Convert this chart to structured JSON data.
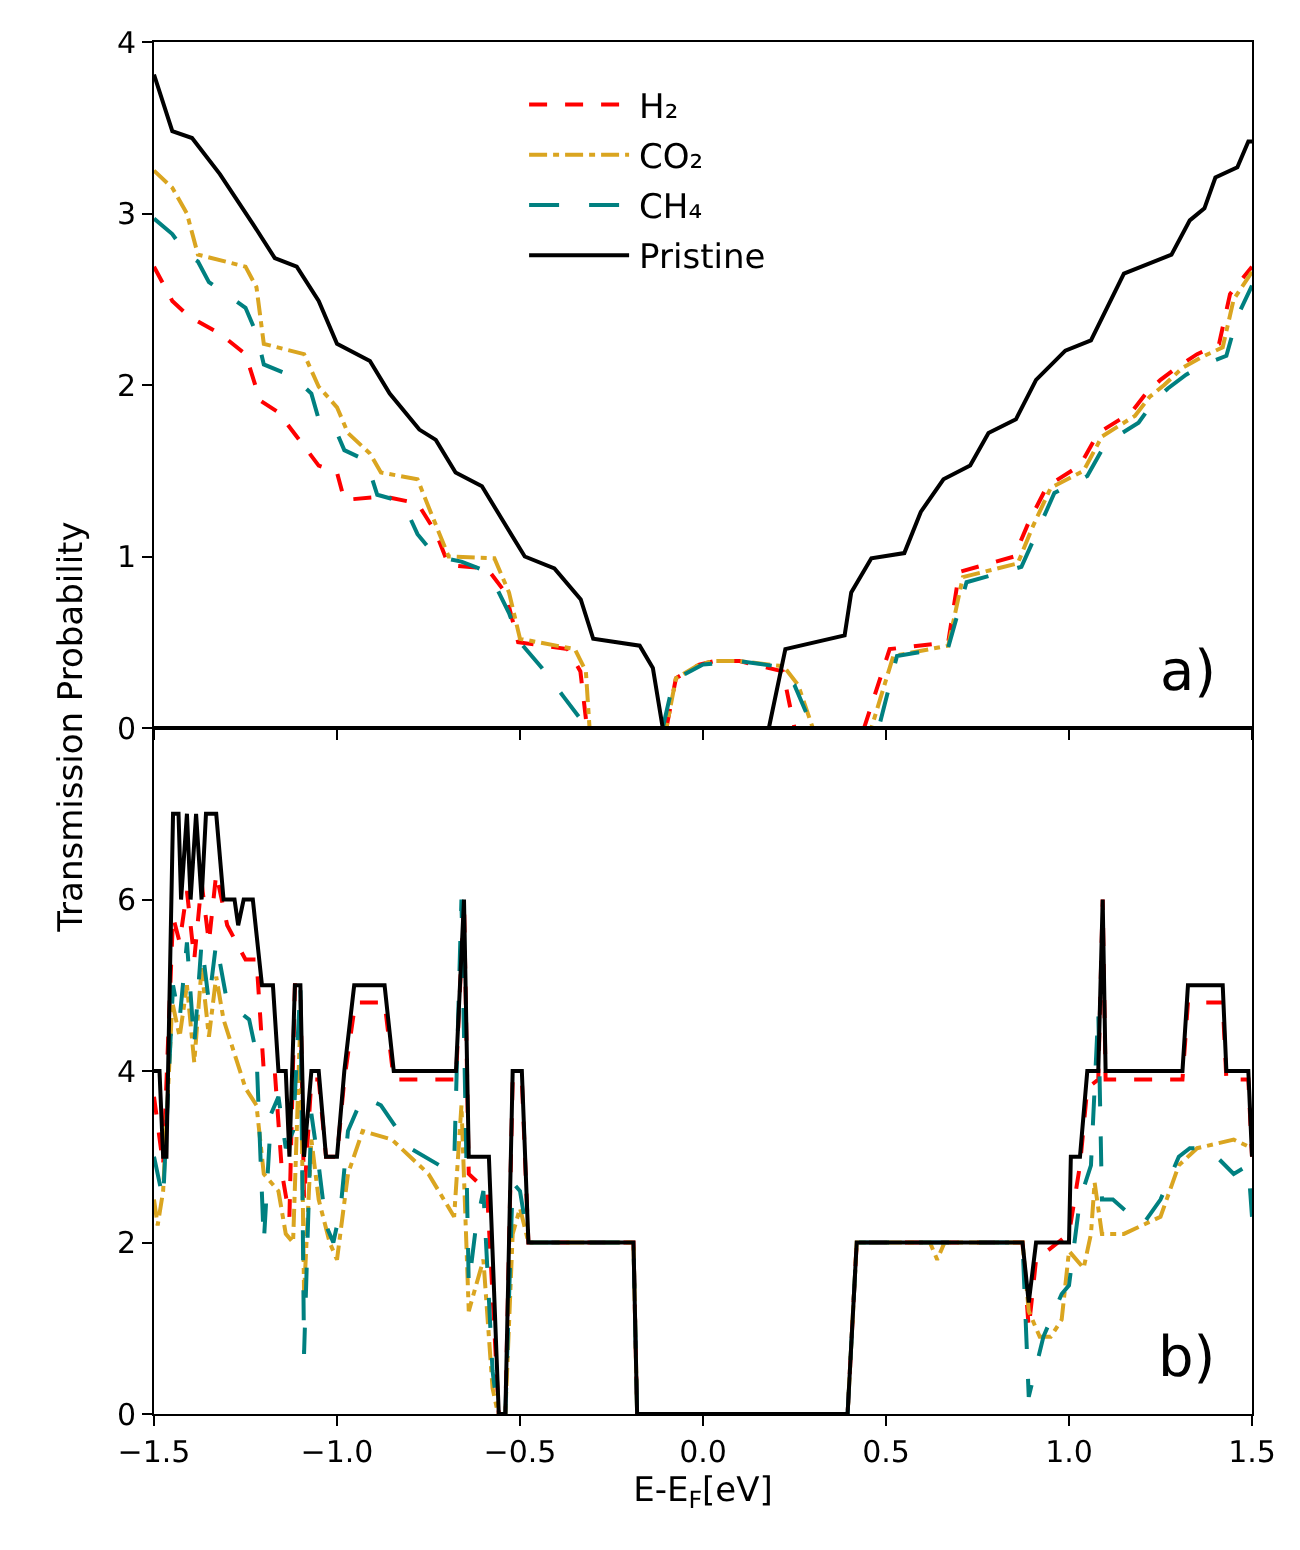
{
  "chart_data": [
    {
      "type": "line",
      "ylabel": "Transmission Probability",
      "annotations": [
        "a)"
      ],
      "xlim": [
        -1.5,
        1.5
      ],
      "xticks": [
        -1.5,
        -1.0,
        -0.5,
        0.0,
        0.5,
        1.0,
        1.5
      ],
      "ylim": [
        0,
        4
      ],
      "yticks": [
        0,
        1,
        2,
        3,
        4
      ],
      "tick_labels": "y",
      "grid": false,
      "legend": "top",
      "marker": "none",
      "series": [
        {
          "name": "H₂",
          "color": "#ff0000",
          "line_style": "dashed",
          "x": [
            -1.5,
            -1.45,
            -1.405,
            -1.32,
            -1.25,
            -1.21,
            -1.16,
            -1.05,
            -1.0,
            -0.98,
            -0.87,
            -0.78,
            -0.73,
            -0.695,
            -0.59,
            -0.54,
            -0.505,
            -0.37,
            -0.335,
            -0.317,
            -0.1,
            -0.074,
            -0.01,
            0.03,
            0.1,
            0.218,
            0.25,
            0.44,
            0.51,
            0.67,
            0.7,
            0.85,
            0.89,
            0.94,
            1.03,
            1.08,
            1.17,
            1.21,
            1.25,
            1.3,
            1.35,
            1.41,
            1.44,
            1.5
          ],
          "values": [
            2.69,
            2.49,
            2.4,
            2.3,
            2.18,
            1.91,
            1.84,
            1.53,
            1.49,
            1.33,
            1.35,
            1.31,
            1.14,
            0.95,
            0.93,
            0.79,
            0.5,
            0.46,
            0.33,
            0,
            0,
            0.29,
            0.37,
            0.39,
            0.39,
            0.33,
            0,
            0,
            0.46,
            0.5,
            0.91,
            1.0,
            1.2,
            1.41,
            1.53,
            1.72,
            1.84,
            1.95,
            2.03,
            2.11,
            2.18,
            2.24,
            2.53,
            2.69
          ]
        },
        {
          "name": "CO₂",
          "color": "#daa520",
          "line_style": "dashdot",
          "x": [
            -1.5,
            -1.45,
            -1.41,
            -1.38,
            -1.25,
            -1.22,
            -1.2,
            -1.09,
            -1.05,
            -1.0,
            -0.97,
            -0.91,
            -0.88,
            -0.78,
            -0.75,
            -0.695,
            -0.57,
            -0.53,
            -0.5,
            -0.35,
            -0.32,
            -0.31,
            -0.1,
            -0.074,
            -0.01,
            0.03,
            0.1,
            0.22,
            0.26,
            0.3,
            0.46,
            0.52,
            0.67,
            0.71,
            0.86,
            0.9,
            0.95,
            1.04,
            1.09,
            1.18,
            1.22,
            1.26,
            1.31,
            1.36,
            1.42,
            1.45,
            1.5
          ],
          "values": [
            3.25,
            3.15,
            3.0,
            2.76,
            2.69,
            2.57,
            2.24,
            2.18,
            1.99,
            1.87,
            1.72,
            1.6,
            1.49,
            1.45,
            1.29,
            1.0,
            0.99,
            0.79,
            0.52,
            0.46,
            0.33,
            0,
            0,
            0.29,
            0.37,
            0.39,
            0.39,
            0.36,
            0.25,
            0,
            0,
            0.42,
            0.48,
            0.88,
            0.96,
            1.17,
            1.4,
            1.5,
            1.7,
            1.82,
            1.93,
            2.0,
            2.1,
            2.16,
            2.22,
            2.5,
            2.66
          ]
        },
        {
          "name": "CH₄",
          "color": "#008080",
          "line_style": "longdash",
          "x": [
            -1.5,
            -1.45,
            -1.41,
            -1.38,
            -1.35,
            -1.25,
            -1.22,
            -1.2,
            -1.12,
            -1.07,
            -1.05,
            -1.0,
            -0.98,
            -0.92,
            -0.89,
            -0.84,
            -0.81,
            -0.78,
            -0.73,
            -0.66,
            -0.6,
            -0.56,
            -0.53,
            -0.5,
            -0.44,
            -0.38,
            -0.33,
            -0.3,
            -0.11,
            -0.08,
            0.0,
            0.1,
            0.2,
            0.25,
            0.3,
            0.48,
            0.53,
            0.67,
            0.72,
            0.87,
            0.91,
            0.96,
            1.05,
            1.1,
            1.19,
            1.23,
            1.27,
            1.32,
            1.37,
            1.43,
            1.46,
            1.5
          ],
          "values": [
            2.97,
            2.88,
            2.76,
            2.72,
            2.6,
            2.45,
            2.3,
            2.12,
            2.05,
            1.95,
            1.8,
            1.72,
            1.62,
            1.56,
            1.36,
            1.33,
            1.27,
            1.13,
            1.0,
            0.97,
            0.92,
            0.8,
            0.67,
            0.5,
            0.35,
            0.18,
            0.04,
            0,
            0,
            0.28,
            0.37,
            0.39,
            0.36,
            0.25,
            0,
            0,
            0.42,
            0.47,
            0.85,
            0.94,
            1.13,
            1.37,
            1.47,
            1.66,
            1.78,
            1.9,
            1.98,
            2.06,
            2.12,
            2.17,
            2.4,
            2.58
          ]
        },
        {
          "name": "Pristine",
          "color": "#000000",
          "line_style": "solid",
          "x": [
            -1.5,
            -1.45,
            -1.396,
            -1.32,
            -1.23,
            -1.17,
            -1.11,
            -1.05,
            -1.0,
            -0.91,
            -0.856,
            -0.775,
            -0.73,
            -0.676,
            -0.604,
            -0.55,
            -0.487,
            -0.406,
            -0.334,
            -0.3,
            -0.173,
            -0.137,
            -0.11,
            0.18,
            0.225,
            0.387,
            0.405,
            0.46,
            0.55,
            0.595,
            0.657,
            0.73,
            0.78,
            0.855,
            0.91,
            0.99,
            1.06,
            1.15,
            1.28,
            1.33,
            1.37,
            1.4,
            1.46,
            1.49,
            1.5
          ],
          "values": [
            3.81,
            3.48,
            3.44,
            3.23,
            2.94,
            2.74,
            2.69,
            2.49,
            2.24,
            2.14,
            1.95,
            1.74,
            1.68,
            1.49,
            1.41,
            1.22,
            1.0,
            0.93,
            0.75,
            0.52,
            0.48,
            0.35,
            0,
            0,
            0.46,
            0.54,
            0.79,
            0.99,
            1.02,
            1.26,
            1.45,
            1.53,
            1.72,
            1.8,
            2.03,
            2.2,
            2.26,
            2.65,
            2.76,
            2.96,
            3.03,
            3.21,
            3.27,
            3.42,
            3.42
          ]
        }
      ]
    },
    {
      "type": "line",
      "xlabel": "E-E$_{F}$[eV]",
      "annotations": [
        "b)"
      ],
      "xlim": [
        -1.5,
        1.5
      ],
      "xticks": [
        {
          "value": -1.5,
          "label": "−1.5"
        },
        {
          "value": -1.0,
          "label": "−1.0"
        },
        {
          "value": -0.5,
          "label": "−0.5"
        },
        {
          "value": 0.0,
          "label": "0.0"
        },
        {
          "value": 0.5,
          "label": "0.5"
        },
        {
          "value": 1.0,
          "label": "1.0"
        },
        {
          "value": 1.5,
          "label": "1.5"
        }
      ],
      "ylim": [
        0,
        8
      ],
      "yticks": [
        0,
        2,
        4,
        6
      ],
      "grid": false,
      "marker": "none",
      "series": [
        {
          "color": "#ff0000",
          "line_style": "dashed",
          "x": [
            -1.5,
            -1.475,
            -1.448,
            -1.43,
            -1.41,
            -1.39,
            -1.37,
            -1.35,
            -1.33,
            -1.3,
            -1.25,
            -1.22,
            -1.2,
            -1.17,
            -1.15,
            -1.13,
            -1.115,
            -1.1,
            -1.09,
            -1.07,
            -1.05,
            -1.03,
            -1.0,
            -0.98,
            -0.95,
            -0.87,
            -0.845,
            -0.675,
            -0.653,
            -0.64,
            -0.59,
            -0.558,
            -0.54,
            -0.52,
            -0.495,
            -0.477,
            -0.19,
            -0.18,
            0.395,
            0.42,
            0.873,
            0.89,
            0.91,
            1.0,
            1.03,
            1.05,
            1.08,
            1.092,
            1.1,
            1.31,
            1.325,
            1.42,
            1.43,
            1.49,
            1.5
          ],
          "values": [
            3.7,
            2.9,
            5.8,
            5.5,
            6.1,
            5.3,
            6.2,
            5.5,
            6.3,
            5.7,
            5.3,
            5.3,
            4.0,
            4.0,
            2.8,
            2.3,
            5.0,
            5.0,
            2.5,
            3.9,
            3.9,
            3.0,
            3.0,
            3.9,
            4.8,
            4.8,
            3.9,
            3.9,
            6.0,
            2.8,
            2.6,
            0,
            0,
            3.9,
            3.9,
            2.0,
            2.0,
            0,
            0,
            2.0,
            2.0,
            1.0,
            1.8,
            2.1,
            2.9,
            3.8,
            3.9,
            6.0,
            3.9,
            3.9,
            4.8,
            4.8,
            3.9,
            3.9,
            3.0
          ]
        },
        {
          "color": "#daa520",
          "line_style": "dashdot",
          "x": [
            -1.5,
            -1.49,
            -1.475,
            -1.45,
            -1.43,
            -1.41,
            -1.39,
            -1.37,
            -1.35,
            -1.33,
            -1.31,
            -1.28,
            -1.25,
            -1.22,
            -1.2,
            -1.16,
            -1.14,
            -1.12,
            -1.1,
            -1.09,
            -1.07,
            -1.05,
            -1.02,
            -1.0,
            -0.97,
            -0.93,
            -0.85,
            -0.75,
            -0.68,
            -0.66,
            -0.64,
            -0.6,
            -0.575,
            -0.56,
            -0.54,
            -0.52,
            -0.5,
            -0.477,
            -0.19,
            -0.18,
            0.395,
            0.42,
            0.62,
            0.64,
            0.66,
            0.873,
            0.89,
            0.92,
            0.95,
            0.98,
            1.0,
            1.04,
            1.06,
            1.07,
            1.09,
            1.15,
            1.25,
            1.3,
            1.35,
            1.45,
            1.5
          ],
          "values": [
            2.5,
            2.2,
            2.6,
            4.8,
            4.4,
            5.0,
            4.1,
            5.2,
            4.4,
            5.1,
            4.6,
            4.2,
            3.8,
            3.6,
            2.8,
            2.6,
            2.1,
            2.0,
            4.6,
            1.4,
            3.2,
            2.5,
            2.0,
            1.8,
            2.8,
            3.3,
            3.2,
            2.8,
            2.3,
            3.6,
            1.2,
            1.8,
            0.3,
            0,
            0,
            2.1,
            2.4,
            2.0,
            2.0,
            0,
            0,
            2.0,
            2.0,
            1.8,
            2.0,
            2.0,
            1.2,
            0.9,
            0.9,
            1.1,
            1.9,
            1.7,
            2.1,
            2.7,
            2.1,
            2.1,
            2.3,
            2.9,
            3.1,
            3.2,
            3.1
          ]
        },
        {
          "color": "#008080",
          "line_style": "longdash",
          "x": [
            -1.5,
            -1.475,
            -1.448,
            -1.43,
            -1.41,
            -1.39,
            -1.37,
            -1.35,
            -1.33,
            -1.3,
            -1.27,
            -1.24,
            -1.22,
            -1.2,
            -1.18,
            -1.16,
            -1.14,
            -1.12,
            -1.1,
            -1.09,
            -1.07,
            -1.05,
            -1.03,
            -1.01,
            -0.99,
            -0.97,
            -0.93,
            -0.88,
            -0.8,
            -0.72,
            -0.68,
            -0.66,
            -0.64,
            -0.62,
            -0.6,
            -0.575,
            -0.56,
            -0.54,
            -0.52,
            -0.5,
            -0.477,
            -0.19,
            -0.18,
            0.395,
            0.42,
            0.873,
            0.89,
            0.93,
            0.98,
            1.0,
            1.03,
            1.06,
            1.08,
            1.09,
            1.12,
            1.2,
            1.25,
            1.3,
            1.33,
            1.38,
            1.45,
            1.49,
            1.5
          ],
          "values": [
            3.0,
            2.5,
            5.0,
            4.6,
            5.5,
            4.3,
            5.5,
            4.8,
            5.5,
            4.8,
            4.7,
            4.6,
            4.2,
            2.0,
            3.5,
            3.7,
            3.1,
            3.3,
            5.0,
            0.7,
            3.5,
            2.9,
            2.2,
            2.0,
            2.4,
            3.3,
            3.7,
            3.6,
            3.1,
            2.9,
            2.9,
            6.0,
            1.5,
            2.2,
            2.6,
            0.5,
            0,
            0,
            2.7,
            2.6,
            2.0,
            2.0,
            0,
            0,
            2.0,
            2.0,
            0.2,
            0.9,
            1.4,
            1.5,
            2.5,
            2.9,
            4.7,
            2.5,
            2.5,
            2.2,
            2.5,
            3.0,
            3.1,
            3.1,
            2.8,
            2.9,
            2.3
          ]
        },
        {
          "color": "#000000",
          "line_style": "solid",
          "x": [
            -1.5,
            -1.485,
            -1.475,
            -1.466,
            -1.448,
            -1.433,
            -1.426,
            -1.41,
            -1.4,
            -1.385,
            -1.37,
            -1.358,
            -1.33,
            -1.31,
            -1.28,
            -1.27,
            -1.255,
            -1.23,
            -1.205,
            -1.175,
            -1.16,
            -1.14,
            -1.13,
            -1.115,
            -1.1,
            -1.09,
            -1.07,
            -1.05,
            -1.03,
            -1.0,
            -0.98,
            -0.953,
            -0.87,
            -0.845,
            -0.675,
            -0.653,
            -0.64,
            -0.585,
            -0.558,
            -0.54,
            -0.52,
            -0.495,
            -0.477,
            -0.19,
            -0.18,
            0.395,
            0.42,
            0.873,
            0.89,
            0.91,
            1.0,
            1.005,
            1.03,
            1.05,
            1.08,
            1.092,
            1.1,
            1.31,
            1.325,
            1.42,
            1.43,
            1.49,
            1.5
          ],
          "values": [
            4.0,
            4.0,
            3.0,
            3.0,
            7.0,
            7.0,
            6.0,
            7.0,
            6.0,
            7.0,
            6.0,
            7.0,
            7.0,
            6.0,
            6.0,
            5.7,
            6.0,
            6.0,
            5.0,
            5.0,
            4.0,
            4.0,
            3.0,
            5.0,
            5.0,
            3.0,
            4.0,
            4.0,
            3.0,
            3.0,
            4.0,
            5.0,
            5.0,
            4.0,
            4.0,
            6.0,
            3.0,
            3.0,
            0,
            0,
            4.0,
            4.0,
            2.0,
            2.0,
            0,
            0,
            2.0,
            2.0,
            1.3,
            2.0,
            2.0,
            3.0,
            3.0,
            4.0,
            4.0,
            6.0,
            4.0,
            4.0,
            5.0,
            5.0,
            4.0,
            4.0,
            3.0
          ]
        }
      ]
    }
  ]
}
